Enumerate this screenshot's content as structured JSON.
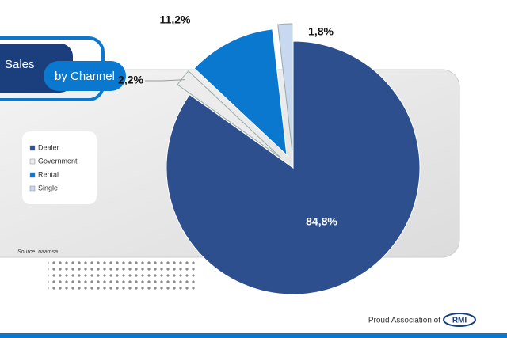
{
  "chart_data": {
    "type": "pie",
    "title": "Sales",
    "subtitle": "by Channel",
    "categories": [
      "Dealer",
      "Government",
      "Rental",
      "Single"
    ],
    "values": [
      84.8,
      2.2,
      11.2,
      1.8
    ],
    "value_labels": [
      "84,8%",
      "2,2%",
      "11,2%",
      "1,8%"
    ],
    "colors": [
      "#2d4f8e",
      "#ececec",
      "#0b78d0",
      "#c7d8f0"
    ],
    "source": "Source: naamsa",
    "footer": "Proud Association of",
    "logo": "RMI"
  }
}
